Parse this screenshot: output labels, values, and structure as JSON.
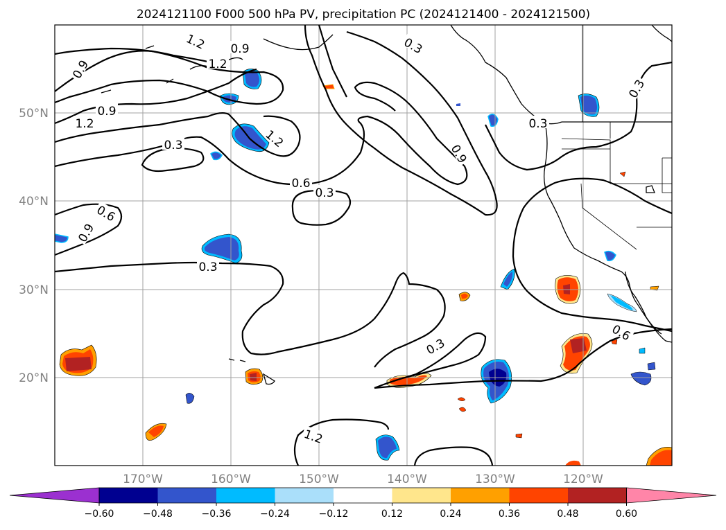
{
  "chart_data": {
    "type": "contour-map",
    "title": "2024121100 F000 500 hPa PV, precipitation PC (2024121400 - 2024121500)",
    "map": {
      "lon_range": [
        -180,
        -110
      ],
      "lat_range": [
        10,
        60
      ],
      "grid": true,
      "x_ticks": [
        "170°W",
        "160°W",
        "150°W",
        "140°W",
        "130°W",
        "120°W"
      ],
      "y_ticks": [
        "50°N",
        "40°N",
        "30°N",
        "20°N"
      ]
    },
    "pv_contour_labels": [
      "1.2",
      "0.9",
      "0.9",
      "1.2",
      "0.9",
      "1.2",
      "0.3",
      "1.2",
      "0.3",
      "0.9",
      "0.3",
      "0.6",
      "0.3",
      "0.6",
      "0.9",
      "0.3",
      "0.3",
      "0.3",
      "0.6"
    ],
    "colorbar": {
      "tick_labels": [
        "−0.60",
        "−0.48",
        "−0.36",
        "−0.24",
        "−0.12",
        "0.12",
        "0.24",
        "0.36",
        "0.48",
        "0.60"
      ],
      "colors": [
        "#9b30d0",
        "#000090",
        "#3355cc",
        "#00bbff",
        "#aadffa",
        "#ffffff",
        "#ffe68c",
        "#ffa000",
        "#ff4400",
        "#b22222",
        "#ff85a8"
      ],
      "extend": "both"
    }
  }
}
